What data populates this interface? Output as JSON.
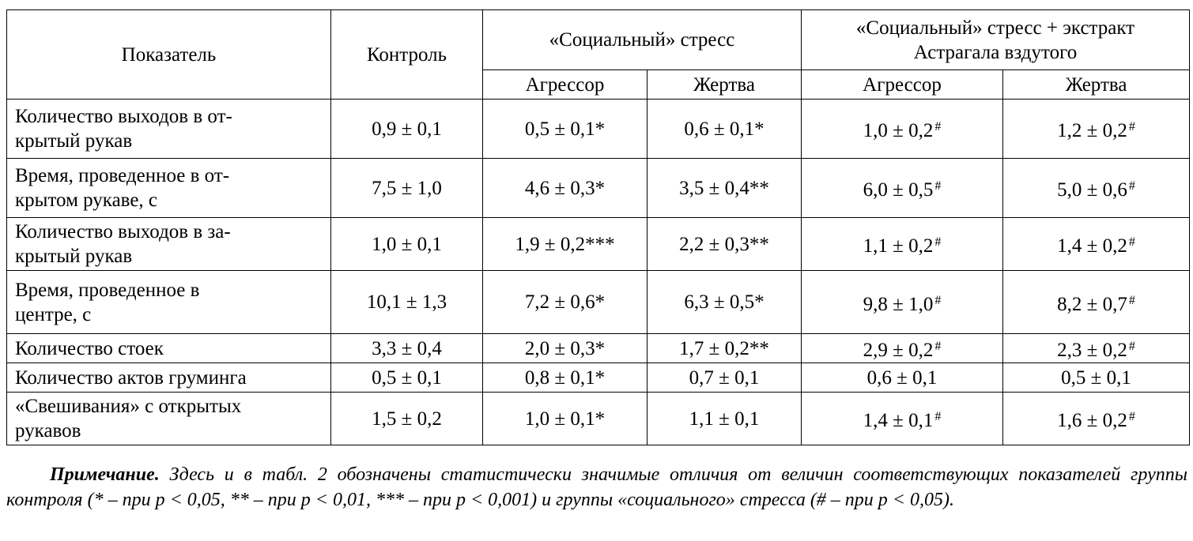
{
  "table": {
    "header": {
      "indicator": "Показатель",
      "control": "Контроль",
      "group1": "«Социальный» стресс",
      "group2_line1": "«Социальный» стресс + экстракт",
      "group2_line2": "Астрагала вздутого",
      "aggressor1": "Агрессор",
      "victim1": "Жертва",
      "aggressor2": "Агрессор",
      "victim2": "Жертва"
    },
    "rows": [
      {
        "label": "Количество выходов в от-\nкрытый рукав",
        "cells": [
          {
            "v": "0,9 ± 0,1",
            "m": ""
          },
          {
            "v": "0,5 ± 0,1*",
            "m": ""
          },
          {
            "v": "0,6 ± 0,1*",
            "m": ""
          },
          {
            "v": "1,0 ± 0,2",
            "m": "#"
          },
          {
            "v": "1,2 ± 0,2",
            "m": "#"
          }
        ]
      },
      {
        "label": "Время, проведенное в от-\nкрытом рукаве, с",
        "cells": [
          {
            "v": "7,5 ± 1,0",
            "m": ""
          },
          {
            "v": "4,6 ± 0,3*",
            "m": ""
          },
          {
            "v": "3,5 ± 0,4**",
            "m": ""
          },
          {
            "v": "6,0 ± 0,5",
            "m": "#"
          },
          {
            "v": "5,0 ± 0,6",
            "m": "#"
          }
        ]
      },
      {
        "label": "Количество выходов в за-\nкрытый рукав",
        "cells": [
          {
            "v": "1,0 ± 0,1",
            "m": ""
          },
          {
            "v": "1,9 ± 0,2***",
            "m": ""
          },
          {
            "v": "2,2 ± 0,3**",
            "m": ""
          },
          {
            "v": "1,1 ± 0,2",
            "m": "#"
          },
          {
            "v": "1,4 ± 0,2",
            "m": "#"
          }
        ]
      },
      {
        "label": "Время, проведенное в\nцентре, с",
        "cells": [
          {
            "v": "10,1 ± 1,3",
            "m": ""
          },
          {
            "v": "7,2 ± 0,6*",
            "m": ""
          },
          {
            "v": "6,3 ± 0,5*",
            "m": ""
          },
          {
            "v": "9,8 ± 1,0",
            "m": "#"
          },
          {
            "v": "8,2 ± 0,7",
            "m": "#"
          }
        ]
      },
      {
        "label": "Количество стоек",
        "cells": [
          {
            "v": "3,3 ± 0,4",
            "m": ""
          },
          {
            "v": "2,0 ± 0,3*",
            "m": ""
          },
          {
            "v": "1,7 ± 0,2**",
            "m": ""
          },
          {
            "v": "2,9 ± 0,2",
            "m": "#"
          },
          {
            "v": "2,3 ± 0,2",
            "m": "#"
          }
        ]
      },
      {
        "label": "Количество актов груминга",
        "cells": [
          {
            "v": "0,5 ± 0,1",
            "m": ""
          },
          {
            "v": "0,8 ± 0,1*",
            "m": ""
          },
          {
            "v": "0,7 ± 0,1",
            "m": ""
          },
          {
            "v": "0,6 ± 0,1",
            "m": ""
          },
          {
            "v": "0,5 ± 0,1",
            "m": ""
          }
        ]
      },
      {
        "label": "«Свешивания» с открытых\nрукавов",
        "cells": [
          {
            "v": "1,5 ± 0,2",
            "m": ""
          },
          {
            "v": "1,0 ± 0,1*",
            "m": ""
          },
          {
            "v": "1,1 ± 0,1",
            "m": ""
          },
          {
            "v": "1,4 ± 0,1",
            "m": "#"
          },
          {
            "v": "1,6 ± 0,2",
            "m": "#"
          }
        ]
      }
    ]
  },
  "note": {
    "title": "Примечание.",
    "text": " Здесь и в табл. 2 обозначены статистически значимые отличия от величин соответствующих показателей группы контроля (* – при p < 0,05, ** – при p < 0,01, *** – при p < 0,001) и группы «социального» стресса (# – при p < 0,05)."
  }
}
